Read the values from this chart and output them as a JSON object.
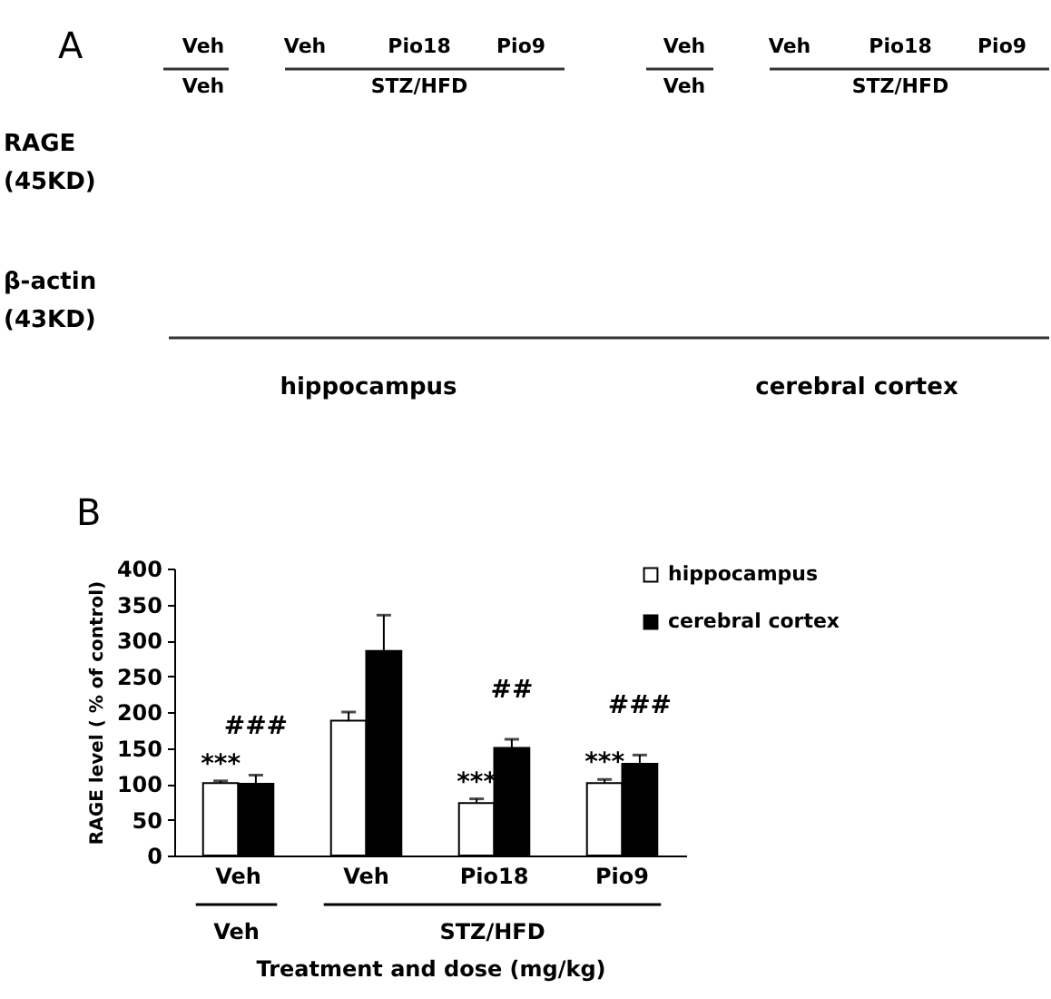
{
  "chart_data": [
    {
      "type": "other",
      "title": "A",
      "annotations": [
        "Veh",
        "Veh",
        "Pio18",
        "Pio9",
        "Veh",
        "STZ/HFD",
        "Veh",
        "Veh",
        "Pio18",
        "Pio9",
        "Veh",
        "STZ/HFD",
        "RAGE\n(45KD)",
        "β-actin\n(43KD)",
        "hippocampus",
        "cerebral cortex"
      ]
    },
    {
      "type": "bar",
      "title": "B",
      "categories": [
        "Veh",
        "Veh",
        "Pio18",
        "Pio9"
      ],
      "xlabel": "Treatment and dose (mg/kg)",
      "ylabel": "RAGE level ( % of control)",
      "ylim": [
        0,
        400
      ],
      "yticks": [
        0,
        50,
        100,
        150,
        200,
        250,
        300,
        350,
        400
      ],
      "legend": "top right",
      "series": [
        {
          "name": "hippocampus",
          "color": "#ffffff",
          "values": [
            101,
            188,
            73,
            101
          ],
          "errors": [
            3,
            12,
            6,
            5
          ],
          "value_labels": [
            "***",
            null,
            "***",
            "***"
          ]
        },
        {
          "name": "cerebral cortex",
          "color": "#000000",
          "values": [
            100,
            285,
            150,
            128
          ],
          "errors": [
            12,
            50,
            12,
            12
          ],
          "value_labels": [
            "###",
            null,
            "##",
            "###"
          ]
        }
      ],
      "annotations": [
        "Veh",
        "STZ/HFD"
      ]
    }
  ]
}
